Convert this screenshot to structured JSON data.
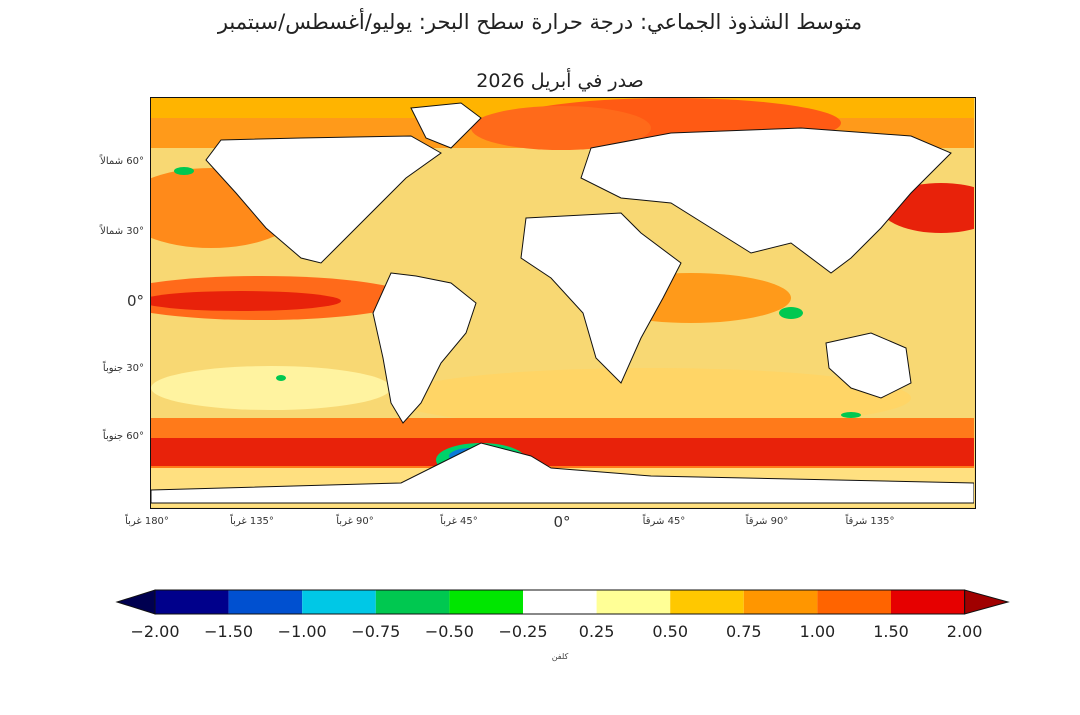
{
  "title": "متوسط الشذوذ الجماعي: درجة حرارة سطح البحر: يوليو/أغسطس/سبتمبر",
  "subtitle": "صدر في أبريل 2026",
  "map": {
    "land_color": "#ffffff",
    "ocean_base_color": "#f8d873",
    "lat_labels": [
      "60° شمالاً",
      "30° شمالاً",
      "0°",
      "30° جنوباً",
      "60° جنوباً"
    ],
    "lon_labels": [
      "180° غرباً",
      "135° غرباً",
      "90° غرباً",
      "45° غرباً",
      "0°",
      "45° شرقاً",
      "90° شرقاً",
      "135° شرقاً"
    ]
  },
  "colorbar": {
    "unit": "كلفن",
    "ticks": [
      "−2.00",
      "−1.50",
      "−1.00",
      "−0.75",
      "−0.50",
      "−0.25",
      "0.25",
      "0.50",
      "0.75",
      "1.00",
      "1.50",
      "2.00"
    ],
    "colors": [
      "#00008b",
      "#0050d0",
      "#00c8e6",
      "#00c850",
      "#00e600",
      "#ffffff",
      "#ffff96",
      "#ffc800",
      "#ff9600",
      "#ff6400",
      "#e60000"
    ],
    "under_color": "#000050",
    "over_color": "#a00000"
  }
}
